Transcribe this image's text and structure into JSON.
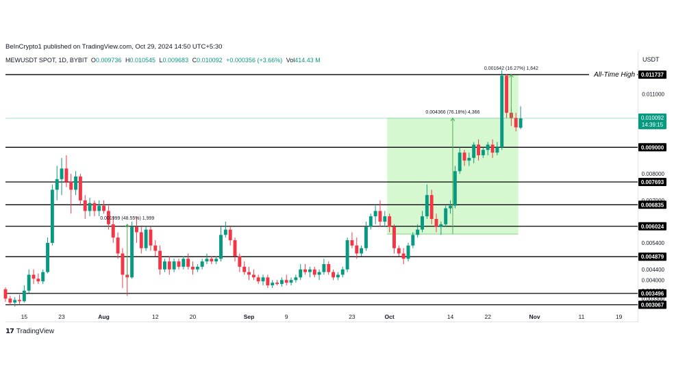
{
  "header": {
    "publisher": "BeInCrypto1 published on TradingView.com, Oct 29, 2024 14:50 UTC+5:30",
    "symbol": "MEWUSDT SPOT, 1D, BYBIT",
    "ohlc": [
      {
        "k": "O",
        "v": "0.009736"
      },
      {
        "k": "H",
        "v": "0.010545"
      },
      {
        "k": "L",
        "v": "0.009683"
      },
      {
        "k": "C",
        "v": "0.010092"
      }
    ],
    "change": "+0.000356 (+3.66%)",
    "vol_label": "Vol",
    "vol": "414.43 M",
    "currency": "USDT"
  },
  "footer": {
    "brand": "TradingView",
    "logo": "tradingview-logo-icon"
  },
  "chart_data": {
    "type": "candlestick",
    "colors": {
      "up": "#089981",
      "down": "#f23645",
      "level": "#000000",
      "zone": "#c8f5c0",
      "zone_line": "#7fd87a"
    },
    "ylim": [
      0.0029,
      0.0121
    ],
    "date_start": "2024-07-11",
    "date_end": "2024-11-23",
    "x_ticks": [
      {
        "date": "2024-07-15",
        "label": "15"
      },
      {
        "date": "2024-07-23",
        "label": "23"
      },
      {
        "date": "2024-08-01",
        "label": "Aug"
      },
      {
        "date": "2024-08-12",
        "label": "12"
      },
      {
        "date": "2024-08-20",
        "label": "20"
      },
      {
        "date": "2024-09-01",
        "label": "Sep"
      },
      {
        "date": "2024-09-09",
        "label": "9"
      },
      {
        "date": "2024-09-23",
        "label": "23"
      },
      {
        "date": "2024-10-01",
        "label": "Oct"
      },
      {
        "date": "2024-10-14",
        "label": "14"
      },
      {
        "date": "2024-10-22",
        "label": "22"
      },
      {
        "date": "2024-11-01",
        "label": "Nov"
      },
      {
        "date": "2024-11-11",
        "label": "11"
      },
      {
        "date": "2024-11-19",
        "label": "19"
      }
    ],
    "y_ticks": [
      {
        "value": 0.011,
        "label": "0.011000"
      },
      {
        "value": 0.008,
        "label": "0.008000"
      },
      {
        "value": 0.007,
        "label": "0.007000"
      },
      {
        "value": 0.0054,
        "label": "0.005400"
      },
      {
        "value": 0.0044,
        "label": "0.004400"
      },
      {
        "value": 0.004,
        "label": "0.004000"
      },
      {
        "value": 0.0036,
        "label": "0.003600"
      },
      {
        "value": 0.0033,
        "label": "0.003300"
      }
    ],
    "levels": [
      {
        "value": 0.011737,
        "label": "0.011737"
      },
      {
        "value": 0.009,
        "label": "0.009000"
      },
      {
        "value": 0.007693,
        "label": "0.007693"
      },
      {
        "value": 0.006835,
        "label": "0.006835"
      },
      {
        "value": 0.006024,
        "label": "0.006024"
      },
      {
        "value": 0.004879,
        "label": "0.004879"
      },
      {
        "value": 0.003496,
        "label": "0.003496"
      },
      {
        "value": 0.003067,
        "label": "0.003067"
      }
    ],
    "current_price": {
      "value": 0.010092,
      "label": "0.010092",
      "countdown": "14:39:15"
    },
    "all_time_high_label": "All-Time High",
    "measures": [
      {
        "date_start": "2024-08-06",
        "date_end": "2024-08-06",
        "from": 0.0041,
        "to": 0.0061,
        "label": "0.001999 (48.55%) 1,999",
        "fill": false
      },
      {
        "date_start": "2024-10-01",
        "date_end": "2024-10-28",
        "from": 0.00573,
        "to": 0.010096,
        "label": "0.004366 (76.18%) 4,366",
        "fill": true
      },
      {
        "date_start": "2024-10-26",
        "date_end": "2024-10-28",
        "from": 0.010096,
        "to": 0.011738,
        "label": "0.001642 (16.27%) 1,642",
        "fill": true
      }
    ],
    "candles": [
      {
        "d": "2024-07-11",
        "o": 0.00365,
        "h": 0.00372,
        "l": 0.00318,
        "c": 0.0033
      },
      {
        "d": "2024-07-12",
        "o": 0.0033,
        "h": 0.0034,
        "l": 0.00305,
        "c": 0.00315
      },
      {
        "d": "2024-07-13",
        "o": 0.00315,
        "h": 0.00335,
        "l": 0.003,
        "c": 0.00325
      },
      {
        "d": "2024-07-14",
        "o": 0.00325,
        "h": 0.00345,
        "l": 0.0031,
        "c": 0.0032
      },
      {
        "d": "2024-07-15",
        "o": 0.0032,
        "h": 0.0038,
        "l": 0.00315,
        "c": 0.0036
      },
      {
        "d": "2024-07-16",
        "o": 0.0036,
        "h": 0.0044,
        "l": 0.0035,
        "c": 0.0042
      },
      {
        "d": "2024-07-17",
        "o": 0.0042,
        "h": 0.0044,
        "l": 0.00385,
        "c": 0.00405
      },
      {
        "d": "2024-07-18",
        "o": 0.00405,
        "h": 0.00425,
        "l": 0.00385,
        "c": 0.00395
      },
      {
        "d": "2024-07-19",
        "o": 0.00395,
        "h": 0.0044,
        "l": 0.00385,
        "c": 0.0043
      },
      {
        "d": "2024-07-20",
        "o": 0.0043,
        "h": 0.0056,
        "l": 0.00425,
        "c": 0.0054
      },
      {
        "d": "2024-07-21",
        "o": 0.0054,
        "h": 0.0076,
        "l": 0.0053,
        "c": 0.0074
      },
      {
        "d": "2024-07-22",
        "o": 0.0074,
        "h": 0.0083,
        "l": 0.007,
        "c": 0.0078
      },
      {
        "d": "2024-07-23",
        "o": 0.0078,
        "h": 0.0086,
        "l": 0.0072,
        "c": 0.0082
      },
      {
        "d": "2024-07-24",
        "o": 0.0082,
        "h": 0.0087,
        "l": 0.0075,
        "c": 0.0077
      },
      {
        "d": "2024-07-25",
        "o": 0.0077,
        "h": 0.008,
        "l": 0.0065,
        "c": 0.0074
      },
      {
        "d": "2024-07-26",
        "o": 0.0074,
        "h": 0.0081,
        "l": 0.0072,
        "c": 0.0079
      },
      {
        "d": "2024-07-27",
        "o": 0.0079,
        "h": 0.008,
        "l": 0.0068,
        "c": 0.007
      },
      {
        "d": "2024-07-28",
        "o": 0.007,
        "h": 0.0072,
        "l": 0.0063,
        "c": 0.0066
      },
      {
        "d": "2024-07-29",
        "o": 0.0066,
        "h": 0.0071,
        "l": 0.0064,
        "c": 0.0069
      },
      {
        "d": "2024-07-30",
        "o": 0.0069,
        "h": 0.007,
        "l": 0.0064,
        "c": 0.0066
      },
      {
        "d": "2024-07-31",
        "o": 0.0066,
        "h": 0.007,
        "l": 0.0064,
        "c": 0.0068
      },
      {
        "d": "2024-08-01",
        "o": 0.0068,
        "h": 0.007,
        "l": 0.0065,
        "c": 0.0066
      },
      {
        "d": "2024-08-02",
        "o": 0.0066,
        "h": 0.0068,
        "l": 0.0059,
        "c": 0.0061
      },
      {
        "d": "2024-08-03",
        "o": 0.0061,
        "h": 0.0064,
        "l": 0.0054,
        "c": 0.0056
      },
      {
        "d": "2024-08-04",
        "o": 0.0056,
        "h": 0.0058,
        "l": 0.0048,
        "c": 0.005
      },
      {
        "d": "2024-08-05",
        "o": 0.005,
        "h": 0.0052,
        "l": 0.0037,
        "c": 0.0042
      },
      {
        "d": "2024-08-06",
        "o": 0.0042,
        "h": 0.0048,
        "l": 0.0034,
        "c": 0.0041
      },
      {
        "d": "2024-08-07",
        "o": 0.0041,
        "h": 0.0062,
        "l": 0.00405,
        "c": 0.006
      },
      {
        "d": "2024-08-08",
        "o": 0.006,
        "h": 0.0064,
        "l": 0.0054,
        "c": 0.0058
      },
      {
        "d": "2024-08-09",
        "o": 0.0058,
        "h": 0.006,
        "l": 0.005,
        "c": 0.0052
      },
      {
        "d": "2024-08-10",
        "o": 0.0052,
        "h": 0.006,
        "l": 0.0051,
        "c": 0.0059
      },
      {
        "d": "2024-08-11",
        "o": 0.0059,
        "h": 0.006,
        "l": 0.0051,
        "c": 0.0053
      },
      {
        "d": "2024-08-12",
        "o": 0.0053,
        "h": 0.0055,
        "l": 0.0049,
        "c": 0.0051
      },
      {
        "d": "2024-08-13",
        "o": 0.0051,
        "h": 0.0053,
        "l": 0.0042,
        "c": 0.0044
      },
      {
        "d": "2024-08-14",
        "o": 0.0044,
        "h": 0.0048,
        "l": 0.0043,
        "c": 0.0047
      },
      {
        "d": "2024-08-15",
        "o": 0.0047,
        "h": 0.0049,
        "l": 0.0042,
        "c": 0.0044
      },
      {
        "d": "2024-08-16",
        "o": 0.0044,
        "h": 0.0048,
        "l": 0.0043,
        "c": 0.0047
      },
      {
        "d": "2024-08-17",
        "o": 0.0047,
        "h": 0.0048,
        "l": 0.0044,
        "c": 0.0045
      },
      {
        "d": "2024-08-18",
        "o": 0.0045,
        "h": 0.0049,
        "l": 0.0044,
        "c": 0.0048
      },
      {
        "d": "2024-08-19",
        "o": 0.0048,
        "h": 0.005,
        "l": 0.0044,
        "c": 0.0045
      },
      {
        "d": "2024-08-20",
        "o": 0.0045,
        "h": 0.0047,
        "l": 0.0042,
        "c": 0.0044
      },
      {
        "d": "2024-08-21",
        "o": 0.0044,
        "h": 0.0046,
        "l": 0.0043,
        "c": 0.0045
      },
      {
        "d": "2024-08-22",
        "o": 0.0045,
        "h": 0.0048,
        "l": 0.0044,
        "c": 0.0047
      },
      {
        "d": "2024-08-23",
        "o": 0.0047,
        "h": 0.005,
        "l": 0.0046,
        "c": 0.0048
      },
      {
        "d": "2024-08-24",
        "o": 0.0048,
        "h": 0.0049,
        "l": 0.0046,
        "c": 0.0047
      },
      {
        "d": "2024-08-25",
        "o": 0.0047,
        "h": 0.0049,
        "l": 0.0046,
        "c": 0.0048
      },
      {
        "d": "2024-08-26",
        "o": 0.0048,
        "h": 0.006,
        "l": 0.0047,
        "c": 0.0057
      },
      {
        "d": "2024-08-27",
        "o": 0.0057,
        "h": 0.0062,
        "l": 0.0056,
        "c": 0.0059
      },
      {
        "d": "2024-08-28",
        "o": 0.0059,
        "h": 0.006,
        "l": 0.0053,
        "c": 0.0055
      },
      {
        "d": "2024-08-29",
        "o": 0.0055,
        "h": 0.0056,
        "l": 0.0047,
        "c": 0.0049
      },
      {
        "d": "2024-08-30",
        "o": 0.0049,
        "h": 0.005,
        "l": 0.0043,
        "c": 0.0045
      },
      {
        "d": "2024-08-31",
        "o": 0.0045,
        "h": 0.0047,
        "l": 0.0042,
        "c": 0.0043
      },
      {
        "d": "2024-09-01",
        "o": 0.0043,
        "h": 0.0045,
        "l": 0.004,
        "c": 0.0042
      },
      {
        "d": "2024-09-02",
        "o": 0.0042,
        "h": 0.0044,
        "l": 0.004,
        "c": 0.0041
      },
      {
        "d": "2024-09-03",
        "o": 0.0041,
        "h": 0.0042,
        "l": 0.00385,
        "c": 0.00395
      },
      {
        "d": "2024-09-04",
        "o": 0.00395,
        "h": 0.0042,
        "l": 0.0038,
        "c": 0.0041
      },
      {
        "d": "2024-09-05",
        "o": 0.0041,
        "h": 0.0042,
        "l": 0.0037,
        "c": 0.0038
      },
      {
        "d": "2024-09-06",
        "o": 0.0038,
        "h": 0.004,
        "l": 0.0037,
        "c": 0.0039
      },
      {
        "d": "2024-09-07",
        "o": 0.0039,
        "h": 0.004,
        "l": 0.0038,
        "c": 0.00385
      },
      {
        "d": "2024-09-08",
        "o": 0.00385,
        "h": 0.0041,
        "l": 0.00375,
        "c": 0.004
      },
      {
        "d": "2024-09-09",
        "o": 0.004,
        "h": 0.0042,
        "l": 0.0038,
        "c": 0.0039
      },
      {
        "d": "2024-09-10",
        "o": 0.0039,
        "h": 0.0041,
        "l": 0.0038,
        "c": 0.004
      },
      {
        "d": "2024-09-11",
        "o": 0.004,
        "h": 0.0042,
        "l": 0.0039,
        "c": 0.0041
      },
      {
        "d": "2024-09-12",
        "o": 0.0041,
        "h": 0.0046,
        "l": 0.004,
        "c": 0.0044
      },
      {
        "d": "2024-09-13",
        "o": 0.0044,
        "h": 0.0046,
        "l": 0.0042,
        "c": 0.0043
      },
      {
        "d": "2024-09-14",
        "o": 0.0043,
        "h": 0.0045,
        "l": 0.0041,
        "c": 0.0044
      },
      {
        "d": "2024-09-15",
        "o": 0.0044,
        "h": 0.0045,
        "l": 0.0041,
        "c": 0.0042
      },
      {
        "d": "2024-09-16",
        "o": 0.0042,
        "h": 0.0044,
        "l": 0.004,
        "c": 0.0043
      },
      {
        "d": "2024-09-17",
        "o": 0.0043,
        "h": 0.0048,
        "l": 0.0042,
        "c": 0.0046
      },
      {
        "d": "2024-09-18",
        "o": 0.0046,
        "h": 0.0047,
        "l": 0.0042,
        "c": 0.0043
      },
      {
        "d": "2024-09-19",
        "o": 0.0043,
        "h": 0.0044,
        "l": 0.004,
        "c": 0.0041
      },
      {
        "d": "2024-09-20",
        "o": 0.0041,
        "h": 0.0043,
        "l": 0.004,
        "c": 0.0042
      },
      {
        "d": "2024-09-21",
        "o": 0.0042,
        "h": 0.0045,
        "l": 0.0041,
        "c": 0.0044
      },
      {
        "d": "2024-09-22",
        "o": 0.0044,
        "h": 0.0056,
        "l": 0.0043,
        "c": 0.0055
      },
      {
        "d": "2024-09-23",
        "o": 0.0055,
        "h": 0.0058,
        "l": 0.0052,
        "c": 0.0053
      },
      {
        "d": "2024-09-24",
        "o": 0.0053,
        "h": 0.0056,
        "l": 0.0048,
        "c": 0.005
      },
      {
        "d": "2024-09-25",
        "o": 0.005,
        "h": 0.0053,
        "l": 0.0049,
        "c": 0.0052
      },
      {
        "d": "2024-09-26",
        "o": 0.0052,
        "h": 0.0062,
        "l": 0.0051,
        "c": 0.006
      },
      {
        "d": "2024-09-27",
        "o": 0.006,
        "h": 0.0065,
        "l": 0.0059,
        "c": 0.0064
      },
      {
        "d": "2024-09-28",
        "o": 0.0064,
        "h": 0.0068,
        "l": 0.0061,
        "c": 0.0066
      },
      {
        "d": "2024-09-29",
        "o": 0.0066,
        "h": 0.007,
        "l": 0.006,
        "c": 0.0062
      },
      {
        "d": "2024-09-30",
        "o": 0.0062,
        "h": 0.0066,
        "l": 0.006,
        "c": 0.0064
      },
      {
        "d": "2024-10-01",
        "o": 0.0064,
        "h": 0.0065,
        "l": 0.0058,
        "c": 0.006
      },
      {
        "d": "2024-10-02",
        "o": 0.006,
        "h": 0.0061,
        "l": 0.005,
        "c": 0.0052
      },
      {
        "d": "2024-10-03",
        "o": 0.0052,
        "h": 0.0053,
        "l": 0.0049,
        "c": 0.005
      },
      {
        "d": "2024-10-04",
        "o": 0.005,
        "h": 0.0052,
        "l": 0.0046,
        "c": 0.0048
      },
      {
        "d": "2024-10-05",
        "o": 0.0048,
        "h": 0.0054,
        "l": 0.0047,
        "c": 0.0053
      },
      {
        "d": "2024-10-06",
        "o": 0.0053,
        "h": 0.0058,
        "l": 0.0052,
        "c": 0.0057
      },
      {
        "d": "2024-10-07",
        "o": 0.0057,
        "h": 0.0061,
        "l": 0.0056,
        "c": 0.0059
      },
      {
        "d": "2024-10-08",
        "o": 0.0059,
        "h": 0.0066,
        "l": 0.0058,
        "c": 0.0064
      },
      {
        "d": "2024-10-09",
        "o": 0.0064,
        "h": 0.0076,
        "l": 0.0063,
        "c": 0.0072
      },
      {
        "d": "2024-10-10",
        "o": 0.0072,
        "h": 0.0074,
        "l": 0.0061,
        "c": 0.0063
      },
      {
        "d": "2024-10-11",
        "o": 0.0063,
        "h": 0.0065,
        "l": 0.0058,
        "c": 0.006
      },
      {
        "d": "2024-10-12",
        "o": 0.006,
        "h": 0.0062,
        "l": 0.0057,
        "c": 0.0061
      },
      {
        "d": "2024-10-13",
        "o": 0.0061,
        "h": 0.0068,
        "l": 0.006,
        "c": 0.0067
      },
      {
        "d": "2024-10-14",
        "o": 0.0067,
        "h": 0.007,
        "l": 0.0065,
        "c": 0.0068
      },
      {
        "d": "2024-10-15",
        "o": 0.0068,
        "h": 0.0083,
        "l": 0.0067,
        "c": 0.0081
      },
      {
        "d": "2024-10-16",
        "o": 0.0081,
        "h": 0.009,
        "l": 0.008,
        "c": 0.0088
      },
      {
        "d": "2024-10-17",
        "o": 0.0088,
        "h": 0.0089,
        "l": 0.0083,
        "c": 0.0085
      },
      {
        "d": "2024-10-18",
        "o": 0.0085,
        "h": 0.0088,
        "l": 0.0083,
        "c": 0.0086
      },
      {
        "d": "2024-10-19",
        "o": 0.0086,
        "h": 0.0092,
        "l": 0.0084,
        "c": 0.0091
      },
      {
        "d": "2024-10-20",
        "o": 0.0091,
        "h": 0.0093,
        "l": 0.0085,
        "c": 0.0087
      },
      {
        "d": "2024-10-21",
        "o": 0.0087,
        "h": 0.009,
        "l": 0.0086,
        "c": 0.0089
      },
      {
        "d": "2024-10-22",
        "o": 0.0089,
        "h": 0.0092,
        "l": 0.0087,
        "c": 0.0091
      },
      {
        "d": "2024-10-23",
        "o": 0.0091,
        "h": 0.0093,
        "l": 0.0086,
        "c": 0.0088
      },
      {
        "d": "2024-10-24",
        "o": 0.0088,
        "h": 0.0092,
        "l": 0.0087,
        "c": 0.009
      },
      {
        "d": "2024-10-25",
        "o": 0.009,
        "h": 0.0119,
        "l": 0.0089,
        "c": 0.0117
      },
      {
        "d": "2024-10-26",
        "o": 0.0117,
        "h": 0.01175,
        "l": 0.0101,
        "c": 0.0103
      },
      {
        "d": "2024-10-27",
        "o": 0.0103,
        "h": 0.0105,
        "l": 0.0098,
        "c": 0.0101
      },
      {
        "d": "2024-10-28",
        "o": 0.0101,
        "h": 0.0103,
        "l": 0.0096,
        "c": 0.00975
      },
      {
        "d": "2024-10-29",
        "o": 0.009736,
        "h": 0.010545,
        "l": 0.009683,
        "c": 0.010092
      }
    ]
  }
}
